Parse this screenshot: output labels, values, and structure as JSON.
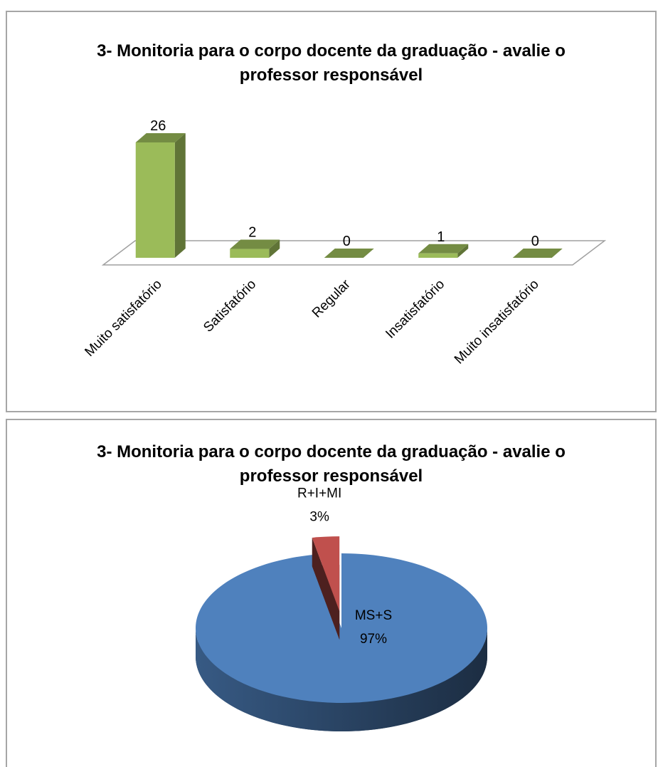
{
  "chart_data": [
    {
      "type": "bar",
      "title": "3- Monitoria para o corpo docente da graduação - avalie o professor responsável",
      "categories": [
        "Muito satisfatório",
        "Satisfatório",
        "Regular",
        "Insatisfatório",
        "Muito insatisfatório"
      ],
      "values": [
        26,
        2,
        0,
        1,
        0
      ],
      "color": "#9bbb59"
    },
    {
      "type": "pie",
      "title": "3- Monitoria para o corpo docente da graduação - avalie o professor responsável",
      "categories": [
        "MS+S",
        "R+I+MI"
      ],
      "values": [
        97,
        3
      ],
      "value_labels": [
        "97%",
        "3%"
      ],
      "colors": [
        "#4f81bd",
        "#c0504d"
      ]
    }
  ]
}
